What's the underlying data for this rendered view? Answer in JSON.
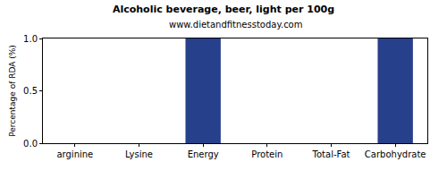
{
  "chart_data": {
    "type": "bar",
    "title": "Alcoholic beverage, beer, light per 100g",
    "subtitle": "www.dietandfitnesstoday.com",
    "y_label": "Percentage of RDA (%)",
    "categories": [
      "arginine",
      "Lysine",
      "Energy",
      "Protein",
      "Total-Fat",
      "Carbohydrate"
    ],
    "values": [
      0,
      0,
      1,
      0,
      0,
      1
    ],
    "color": "#27408b",
    "ylim": [
      0,
      1
    ],
    "yticks": [
      {
        "value": 0,
        "label": "0.0"
      },
      {
        "value": 0.5,
        "label": "0.5"
      },
      {
        "value": 1,
        "label": "1.0"
      }
    ],
    "grid": false
  }
}
